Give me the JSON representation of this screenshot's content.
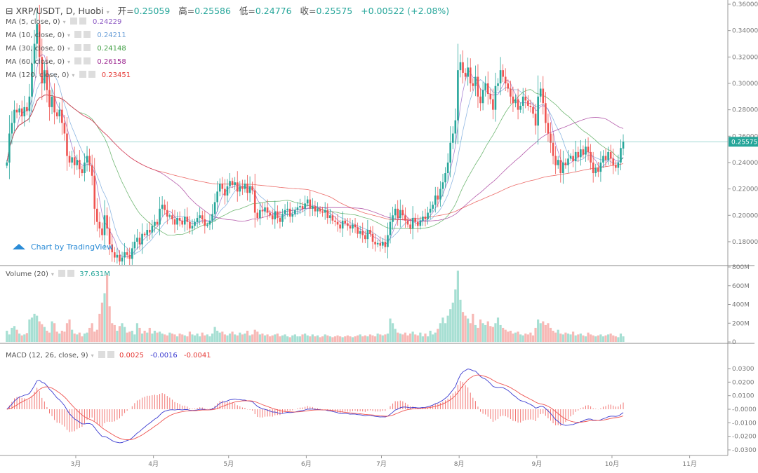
{
  "header": {
    "symbol": "XRP/USDT, D, Huobi",
    "open_label": "开=",
    "open": "0.25059",
    "high_label": "高=",
    "high": "0.25586",
    "low_label": "低=",
    "low": "0.24776",
    "close_label": "收=",
    "close": "0.25575",
    "change": "+0.00522 (+2.08%)"
  },
  "indicators": [
    {
      "label": "MA (5, close, 0)",
      "value": "0.24229",
      "color": "#8e5cc4"
    },
    {
      "label": "MA (10, close, 0)",
      "value": "0.24211",
      "color": "#6a9fd8"
    },
    {
      "label": "MA (30, close, 0)",
      "value": "0.24148",
      "color": "#43a047"
    },
    {
      "label": "MA (60, close, 0)",
      "value": "0.26158",
      "color": "#9c2790"
    },
    {
      "label": "MA (120, close, 0)",
      "value": "0.23451",
      "color": "#e53935"
    }
  ],
  "volume_legend": {
    "label": "Volume (20)",
    "value": "37.631M"
  },
  "macd_legend": {
    "label": "MACD (12, 26, close, 9)",
    "hist": "0.0025",
    "macd": "-0.0016",
    "signal": "-0.0041"
  },
  "watermark": "Chart by TradingView",
  "colors": {
    "up": "#26a69a",
    "down": "#ef5350",
    "vol_up": "#a7dfd3",
    "vol_down": "#f7b9b6",
    "macd": "#3a3ad0",
    "signal": "#ef5350"
  },
  "chart_data": {
    "type": "candlestick",
    "start_date": "2/1",
    "interval": "D",
    "price_axis": {
      "ticks": [
        "0.36000",
        "0.34000",
        "0.32000",
        "0.30000",
        "0.28000",
        "0.26000",
        "0.24000",
        "0.22000",
        "0.20000",
        "0.18000"
      ],
      "range": [
        0.171,
        0.36
      ]
    },
    "last_price": "0.25575",
    "volume_axis": {
      "ticks": [
        "800M",
        "600M",
        "400M",
        "200M",
        "0"
      ],
      "range": [
        0,
        800
      ]
    },
    "macd_axis": {
      "ticks": [
        "0.0300",
        "0.0200",
        "0.0100",
        "-0.0000",
        "-0.0100",
        "-0.0200",
        "-0.0300"
      ],
      "range": [
        -0.032,
        0.032
      ]
    },
    "x_ticks": [
      "3月",
      "4月",
      "5月",
      "6月",
      "7月",
      "8月",
      "9月",
      "10月",
      "11月"
    ],
    "last_open": 0.25059,
    "close": [
      0.24,
      0.262,
      0.27,
      0.28,
      0.278,
      0.281,
      0.275,
      0.282,
      0.279,
      0.29,
      0.315,
      0.33,
      0.345,
      0.32,
      0.3,
      0.31,
      0.295,
      0.282,
      0.29,
      0.278,
      0.275,
      0.28,
      0.27,
      0.262,
      0.245,
      0.24,
      0.244,
      0.238,
      0.242,
      0.235,
      0.232,
      0.24,
      0.245,
      0.238,
      0.23,
      0.205,
      0.195,
      0.19,
      0.185,
      0.2,
      0.19,
      0.178,
      0.172,
      0.168,
      0.17,
      0.165,
      0.168,
      0.172,
      0.17,
      0.167,
      0.175,
      0.18,
      0.183,
      0.178,
      0.186,
      0.185,
      0.189,
      0.187,
      0.192,
      0.195,
      0.193,
      0.205,
      0.208,
      0.204,
      0.199,
      0.2,
      0.197,
      0.193,
      0.198,
      0.196,
      0.193,
      0.199,
      0.195,
      0.19,
      0.192,
      0.195,
      0.198,
      0.2,
      0.197,
      0.192,
      0.193,
      0.196,
      0.201,
      0.21,
      0.218,
      0.224,
      0.22,
      0.215,
      0.222,
      0.226,
      0.223,
      0.225,
      0.218,
      0.222,
      0.22,
      0.224,
      0.217,
      0.222,
      0.219,
      0.202,
      0.198,
      0.204,
      0.203,
      0.206,
      0.202,
      0.2,
      0.197,
      0.203,
      0.198,
      0.195,
      0.201,
      0.204,
      0.205,
      0.199,
      0.201,
      0.204,
      0.206,
      0.207,
      0.205,
      0.209,
      0.212,
      0.205,
      0.207,
      0.203,
      0.205,
      0.203,
      0.202,
      0.204,
      0.198,
      0.2,
      0.196,
      0.195,
      0.193,
      0.19,
      0.196,
      0.194,
      0.192,
      0.19,
      0.193,
      0.191,
      0.186,
      0.188,
      0.185,
      0.182,
      0.189,
      0.186,
      0.18,
      0.178,
      0.179,
      0.177,
      0.18,
      0.176,
      0.185,
      0.195,
      0.2,
      0.205,
      0.198,
      0.204,
      0.2,
      0.196,
      0.193,
      0.19,
      0.198,
      0.195,
      0.192,
      0.196,
      0.199,
      0.197,
      0.202,
      0.205,
      0.208,
      0.215,
      0.212,
      0.22,
      0.225,
      0.232,
      0.24,
      0.255,
      0.262,
      0.272,
      0.31,
      0.316,
      0.308,
      0.305,
      0.312,
      0.3,
      0.298,
      0.305,
      0.29,
      0.285,
      0.295,
      0.3,
      0.292,
      0.288,
      0.28,
      0.298,
      0.3,
      0.31,
      0.305,
      0.3,
      0.296,
      0.29,
      0.285,
      0.288,
      0.28,
      0.283,
      0.29,
      0.287,
      0.283,
      0.282,
      0.277,
      0.268,
      0.29,
      0.296,
      0.285,
      0.27,
      0.262,
      0.255,
      0.245,
      0.238,
      0.242,
      0.232,
      0.24,
      0.238,
      0.243,
      0.245,
      0.241,
      0.248,
      0.244,
      0.25,
      0.246,
      0.252,
      0.248,
      0.24,
      0.232,
      0.236,
      0.233,
      0.24,
      0.245,
      0.242,
      0.248,
      0.243,
      0.238,
      0.236,
      0.24,
      0.251,
      0.25575
    ],
    "volume_m": [
      120,
      80,
      150,
      170,
      130,
      90,
      70,
      80,
      95,
      240,
      260,
      300,
      280,
      220,
      190,
      160,
      120,
      100,
      220,
      200,
      110,
      90,
      120,
      110,
      200,
      240,
      130,
      90,
      80,
      100,
      60,
      90,
      100,
      150,
      200,
      110,
      130,
      300,
      420,
      520,
      720,
      380,
      200,
      180,
      120,
      170,
      200,
      160,
      100,
      110,
      120,
      80,
      200,
      150,
      90,
      120,
      100,
      150,
      90,
      120,
      100,
      110,
      90,
      80,
      70,
      100,
      90,
      80,
      60,
      90,
      80,
      70,
      60,
      110,
      80,
      70,
      90,
      60,
      100,
      70,
      80,
      60,
      90,
      160,
      120,
      100,
      110,
      80,
      70,
      90,
      110,
      80,
      70,
      100,
      80,
      90,
      120,
      70,
      80,
      130,
      110,
      80,
      90,
      70,
      80,
      60,
      70,
      80,
      90,
      60,
      70,
      80,
      60,
      50,
      70,
      80,
      60,
      60,
      80,
      90,
      70,
      60,
      80,
      60,
      70,
      50,
      60,
      80,
      70,
      60,
      50,
      60,
      70,
      60,
      50,
      60,
      70,
      60,
      50,
      60,
      70,
      80,
      60,
      70,
      60,
      80,
      70,
      60,
      90,
      80,
      70,
      80,
      90,
      250,
      200,
      140,
      100,
      90,
      80,
      100,
      70,
      90,
      110,
      80,
      70,
      100,
      60,
      90,
      60,
      120,
      80,
      100,
      140,
      200,
      260,
      200,
      280,
      350,
      420,
      560,
      760,
      450,
      320,
      280,
      250,
      200,
      300,
      180,
      150,
      240,
      200,
      180,
      220,
      170,
      160,
      200,
      260,
      180,
      150,
      130,
      110,
      120,
      90,
      100,
      110,
      80,
      70,
      90,
      80,
      100,
      70,
      150,
      240,
      200,
      220,
      180,
      200,
      150,
      120,
      100,
      130,
      90,
      80,
      100,
      90,
      80,
      110,
      70,
      80,
      90,
      70,
      60,
      100,
      80,
      70,
      60,
      70,
      80,
      60,
      70,
      80,
      90,
      70,
      60,
      50,
      90,
      60
    ]
  }
}
